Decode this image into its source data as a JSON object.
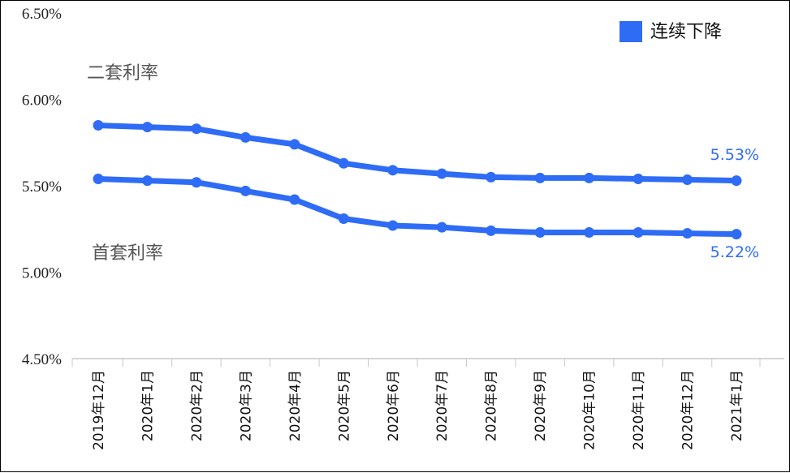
{
  "chart_data": {
    "type": "line",
    "title": "",
    "xlabel": "",
    "ylabel": "",
    "ylim": [
      4.5,
      6.5
    ],
    "yticks": [
      "4.50%",
      "5.00%",
      "5.50%",
      "6.00%",
      "6.50%"
    ],
    "categories": [
      "2019年12月",
      "2020年1月",
      "2020年2月",
      "2020年3月",
      "2020年4月",
      "2020年5月",
      "2020年6月",
      "2020年7月",
      "2020年8月",
      "2020年9月",
      "2020年10月",
      "2020年11月",
      "2020年12月",
      "2021年1月"
    ],
    "series": [
      {
        "name": "二套利率",
        "values": [
          5.85,
          5.84,
          5.83,
          5.78,
          5.74,
          5.63,
          5.59,
          5.57,
          5.55,
          5.545,
          5.545,
          5.54,
          5.535,
          5.53
        ],
        "end_label": "5.53%"
      },
      {
        "name": "首套利率",
        "values": [
          5.54,
          5.53,
          5.52,
          5.47,
          5.42,
          5.31,
          5.27,
          5.26,
          5.24,
          5.23,
          5.23,
          5.23,
          5.225,
          5.22
        ],
        "end_label": "5.22%"
      }
    ],
    "legend": {
      "label": "连续下降",
      "position": "top-right"
    },
    "color": "#2f6cf6",
    "grid": false
  }
}
